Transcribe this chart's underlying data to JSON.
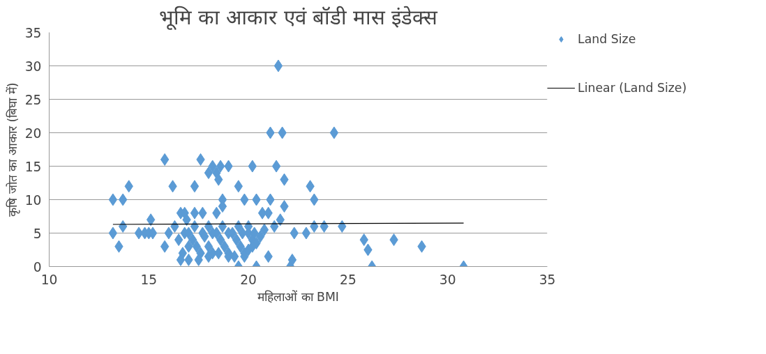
{
  "chart_data": {
    "type": "scatter",
    "title": "भूमि का आकार एवं बॉडी मास इंडेक्स",
    "xlabel": "महिलाओं का BMI",
    "ylabel": "कृषि जोत का आकार (बिघा में)",
    "xlim": [
      10,
      35
    ],
    "xticks": [
      10,
      15,
      20,
      25,
      30,
      35
    ],
    "ylim": [
      0,
      35
    ],
    "yticks": [
      0,
      5,
      10,
      15,
      20,
      25,
      30,
      35
    ],
    "grid": "y",
    "legend": "right",
    "series": [
      {
        "name": "Land Size",
        "color": "#5b9bd5",
        "marker": "diamond",
        "x": [
          13.2,
          13.2,
          13.5,
          13.7,
          13.7,
          14.0,
          14.5,
          14.8,
          15.0,
          15.2,
          15.1,
          15.8,
          15.8,
          16.0,
          16.2,
          16.3,
          16.6,
          16.8,
          16.8,
          16.9,
          16.7,
          16.6,
          17.0,
          17.3,
          17.3,
          17.6,
          17.7,
          17.7,
          18.0,
          18.2,
          18.4,
          18.5,
          18.4,
          18.6,
          19.0,
          18.7,
          18.7,
          19.5,
          19.8,
          20.2,
          20.4,
          20.7,
          21.0,
          21.1,
          21.1,
          21.5,
          21.3,
          21.4,
          21.7,
          21.8,
          21.8,
          21.6,
          21.0,
          19.5,
          20.4,
          22.1,
          22.2,
          22.3,
          22.9,
          23.1,
          23.3,
          23.3,
          23.8,
          24.3,
          24.7,
          25.8,
          26.0,
          26.2,
          27.3,
          28.7,
          30.8,
          17.2,
          17.4,
          17.6,
          17.8,
          18.0,
          18.2,
          18.4,
          18.6,
          18.8,
          19.0,
          19.2,
          19.4,
          19.6,
          19.8,
          20.0,
          20.2,
          20.4,
          20.6,
          17.0,
          17.5,
          18.0,
          18.5,
          19.0,
          19.8,
          20.0,
          17.3,
          18.0,
          18.7,
          19.5,
          20.0,
          16.5,
          17.0,
          18.2,
          19.0,
          19.7,
          20.3,
          20.8,
          19.3,
          20.2
        ],
        "values": [
          10,
          5,
          3,
          10,
          6,
          12,
          5,
          5,
          5,
          5,
          7,
          16,
          3,
          5,
          12,
          6,
          8,
          8,
          5,
          7,
          2,
          1,
          3,
          12,
          8,
          16,
          8,
          5,
          14,
          15,
          14,
          13,
          8,
          15,
          15,
          10,
          9,
          12,
          10,
          15,
          10,
          8,
          8,
          20,
          10,
          30,
          6,
          15,
          20,
          13,
          9,
          7,
          1.5,
          0,
          0,
          0,
          1,
          5,
          5,
          12,
          10,
          6,
          6,
          20,
          6,
          4,
          2.5,
          0,
          4,
          3,
          0,
          4,
          3,
          2,
          4.5,
          3,
          2,
          5,
          4,
          3,
          2,
          5,
          4,
          3,
          2,
          5,
          4,
          3.5,
          4.5,
          1,
          1,
          1.5,
          2,
          1.5,
          1.5,
          2.5,
          6,
          6,
          6,
          6,
          6,
          4,
          5,
          5,
          5,
          5,
          5,
          5.5,
          1.5,
          3
        ]
      },
      {
        "name": "Linear (Land Size)",
        "color": "#000000",
        "type": "line",
        "x": [
          13.2,
          30.8
        ],
        "values": [
          6.3,
          6.5
        ]
      }
    ]
  }
}
